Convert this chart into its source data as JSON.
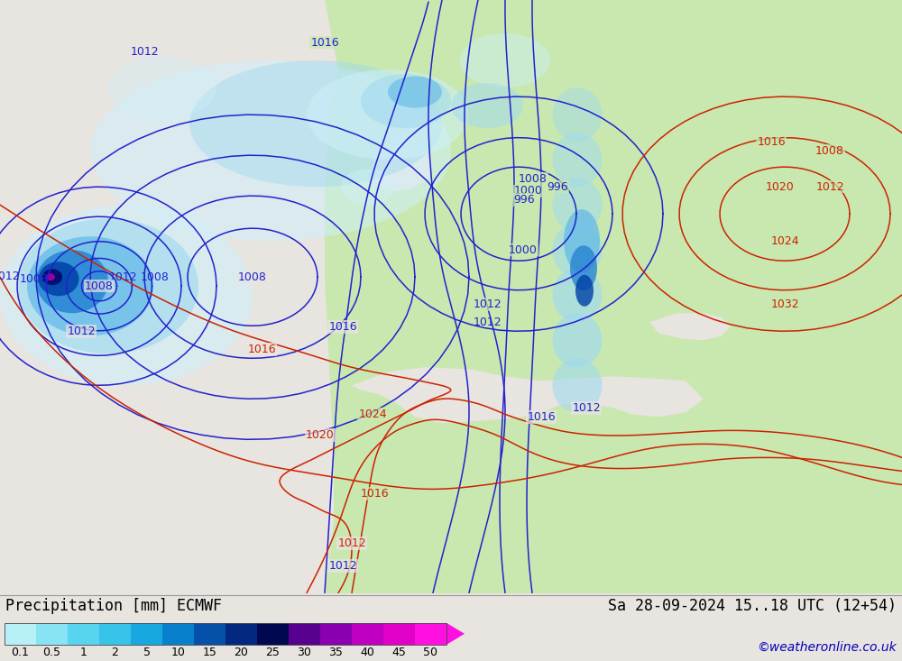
{
  "title_left": "Precipitation [mm] ECMWF",
  "title_right": "Sa 28-09-2024 15..18 UTC (12+54)",
  "credit": "©weatheronline.co.uk",
  "colorbar_values": [
    "0.1",
    "0.5",
    "1",
    "2",
    "5",
    "10",
    "15",
    "20",
    "25",
    "30",
    "35",
    "40",
    "45",
    "50"
  ],
  "colorbar_colors": [
    "#b8f0f8",
    "#88e4f4",
    "#58d4f0",
    "#38c4e8",
    "#18a8e0",
    "#0880cc",
    "#0550a8",
    "#022880",
    "#000850",
    "#580090",
    "#8800b0",
    "#c000c0",
    "#e000c8",
    "#ff10e0"
  ],
  "ocean_color": "#e8e4e0",
  "land_green": "#c8e8b0",
  "land_green_dark": "#b0d898",
  "land_grey": "#b8b8b8",
  "isobar_blue": "#2222cc",
  "isobar_red": "#cc2200",
  "precip_v_light": "#d0f0fa",
  "precip_light": "#a0daf0",
  "precip_med": "#60b8e8",
  "precip_heavy": "#2080d0",
  "precip_vheavy": "#0040a8",
  "precip_intense": "#000870",
  "precip_magenta": "#a000a0",
  "bottom_bg": "#ffffff",
  "label_fontsize": 12,
  "credit_fontsize": 10,
  "isobar_fontsize": 9,
  "isobar_lw": 1.1
}
